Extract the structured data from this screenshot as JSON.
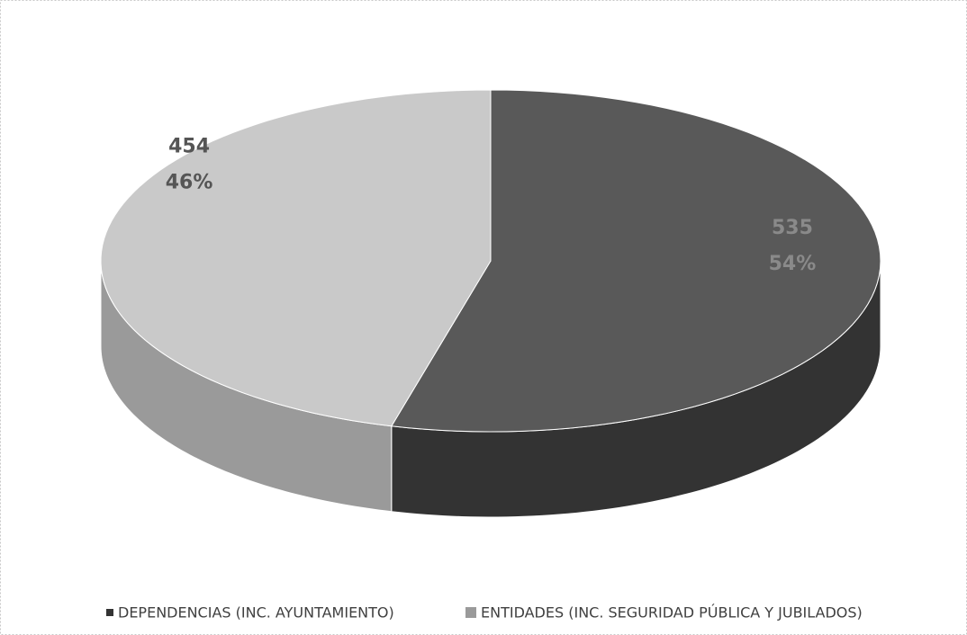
{
  "chart_data": {
    "type": "pie3d",
    "categories": [
      "DEPENDENCIAS (INC. AYUNTAMIENTO)",
      "ENTIDADES (INC. SEGURIDAD PÚBLICA Y JUBILADOS)"
    ],
    "values": [
      535,
      454
    ],
    "percent_labels": [
      "54%",
      "46%"
    ],
    "colors": [
      "#595959",
      "#c9c9c9"
    ],
    "side_colors": [
      "#333333",
      "#9a9a9a"
    ],
    "label_colors": [
      "#8a8a8a",
      "#555555"
    ],
    "legend": "bottom"
  }
}
